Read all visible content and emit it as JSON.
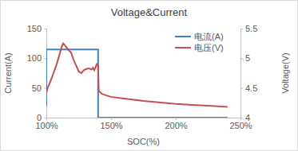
{
  "chart_data": {
    "type": "line",
    "title": "Voltage&Current",
    "x_label": "SOC(%)",
    "y_label": "Current(A)",
    "y2_label": "Voltage(V)",
    "xlim": [
      100,
      250
    ],
    "xticks": [
      {
        "value": 100,
        "label": "100%"
      },
      {
        "value": 150,
        "label": "150%"
      },
      {
        "value": 200,
        "label": "200%"
      },
      {
        "value": 250,
        "label": "250%"
      }
    ],
    "ylim": [
      0,
      150
    ],
    "yticks": [
      0,
      50,
      100,
      150
    ],
    "y2lim": [
      4,
      5.5
    ],
    "y2ticks": [
      4,
      4.5,
      5,
      5.5
    ],
    "legend": "upper right",
    "grid": false,
    "series": [
      {
        "name": "电流(A)",
        "color": "#4a7ebb",
        "x": [
          100,
          100,
          140,
          140,
          240
        ],
        "values": [
          20,
          115,
          115,
          0,
          0
        ]
      },
      {
        "name": "电压(V)",
        "color": "#c0504d",
        "axis": "y2",
        "x": [
          100,
          101,
          103,
          105,
          108,
          110,
          112,
          113,
          115,
          117,
          119,
          121,
          123,
          125,
          127,
          129,
          131,
          133,
          135,
          136,
          137,
          138,
          139,
          140,
          140.5,
          143,
          147,
          150,
          160,
          175,
          190,
          200,
          215,
          225,
          240
        ],
        "values": [
          4.42,
          4.5,
          4.6,
          4.72,
          4.9,
          5.05,
          5.2,
          5.25,
          5.2,
          5.14,
          5.1,
          4.98,
          4.88,
          4.78,
          4.75,
          4.8,
          4.82,
          4.83,
          4.81,
          4.84,
          4.8,
          4.85,
          4.9,
          4.88,
          4.45,
          4.4,
          4.37,
          4.35,
          4.32,
          4.28,
          4.25,
          4.23,
          4.21,
          4.2,
          4.18
        ]
      }
    ]
  }
}
